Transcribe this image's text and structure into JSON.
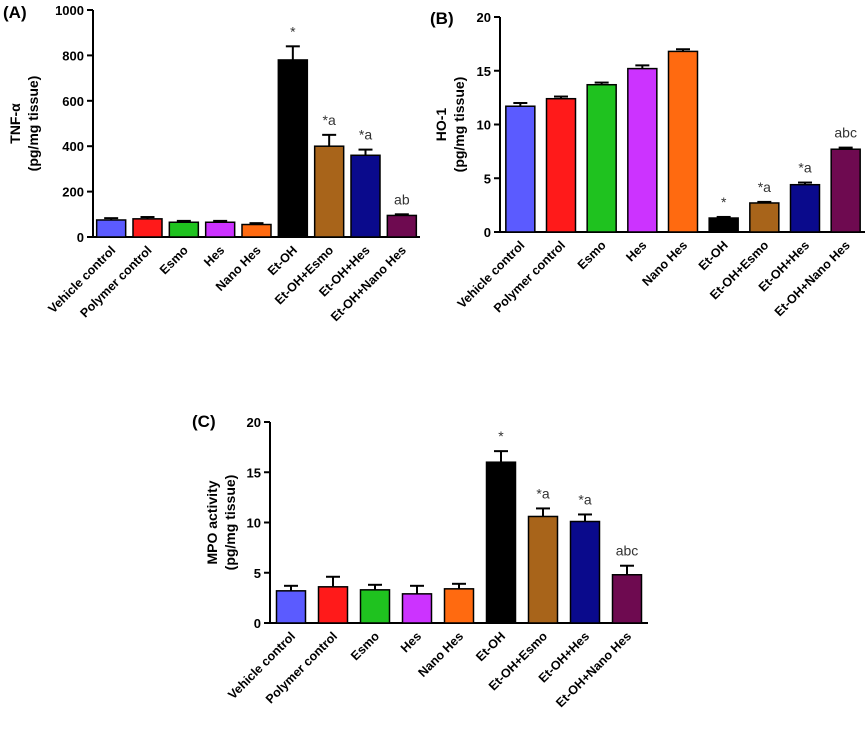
{
  "figure_panels": [
    "(A)",
    "(B)",
    "(C)"
  ],
  "colors": {
    "vehicle_control": "#5b5bff",
    "polymer_control": "#ff1a1a",
    "esmo": "#1fc21f",
    "hes": "#cc33ff",
    "nano_hes": "#ff6a10",
    "et_oh": "#000000",
    "et_oh_esmo": "#a8641a",
    "et_oh_hes": "#0a0a8c",
    "et_oh_nano_hes": "#6e0a50"
  },
  "chart_data": [
    {
      "panel": "(A)",
      "type": "bar",
      "ylabel_line1": "TNF-α",
      "ylabel_line2": "(pg/mg tissue)",
      "ylim": [
        0,
        1000
      ],
      "yticks": [
        "0",
        "200",
        "400",
        "600",
        "800",
        "1000"
      ],
      "categories": [
        "Vehicle control",
        "Polymer control",
        "Esmo",
        "Hes",
        "Nano Hes",
        "Et-OH",
        "Et-OH+Esmo",
        "Et-OH+Hes",
        "Et-OH+Nano Hes"
      ],
      "values": [
        75,
        80,
        65,
        65,
        55,
        780,
        400,
        360,
        95
      ],
      "errors": [
        8,
        8,
        6,
        6,
        6,
        60,
        50,
        25,
        5
      ],
      "annotations": [
        "",
        "",
        "",
        "",
        "",
        "*",
        "*a",
        "*a",
        "ab"
      ]
    },
    {
      "panel": "(B)",
      "type": "bar",
      "ylabel_line1": "HO-1",
      "ylabel_line2": "(pg/mg tissue)",
      "ylim": [
        0,
        20
      ],
      "yticks": [
        "0",
        "5",
        "10",
        "15",
        "20"
      ],
      "categories": [
        "Vehicle control",
        "Polymer control",
        "Esmo",
        "Hes",
        "Nano Hes",
        "Et-OH",
        "Et-OH+Esmo",
        "Et-OH+Hes",
        "Et-OH+Nano Hes"
      ],
      "values": [
        11.7,
        12.4,
        13.7,
        15.2,
        16.8,
        1.3,
        2.7,
        4.4,
        7.7
      ],
      "errors": [
        0.3,
        0.2,
        0.2,
        0.3,
        0.2,
        0.1,
        0.1,
        0.2,
        0.15
      ],
      "annotations": [
        "",
        "",
        "",
        "",
        "",
        "*",
        "*a",
        "*a",
        "abc"
      ]
    },
    {
      "panel": "(C)",
      "type": "bar",
      "ylabel_line1": "MPO activity",
      "ylabel_line2": "(pg/mg tissue)",
      "ylim": [
        0,
        20
      ],
      "yticks": [
        "0",
        "5",
        "10",
        "15",
        "20"
      ],
      "categories": [
        "Vehicle control",
        "Polymer control",
        "Esmo",
        "Hes",
        "Nano Hes",
        "Et-OH",
        "Et-OH+Esmo",
        "Et-OH+Hes",
        "Et-OH+Nano Hes"
      ],
      "values": [
        3.2,
        3.6,
        3.3,
        2.9,
        3.4,
        16.0,
        10.6,
        10.1,
        4.8
      ],
      "errors": [
        0.5,
        1.0,
        0.5,
        0.8,
        0.5,
        1.1,
        0.8,
        0.7,
        0.9
      ],
      "annotations": [
        "",
        "",
        "",
        "",
        "",
        "*",
        "*a",
        "*a",
        "abc"
      ]
    }
  ]
}
